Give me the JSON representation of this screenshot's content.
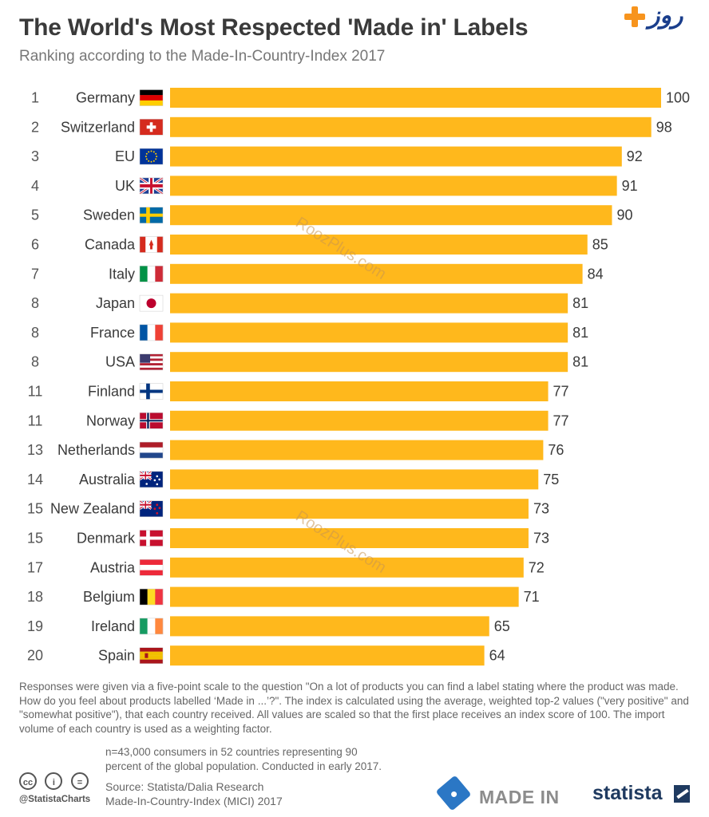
{
  "header": {
    "title": "The World's Most Respected 'Made in' Labels",
    "subtitle": "Ranking according to the Made-In-Country-Index 2017"
  },
  "brand": {
    "text": "روز",
    "icon": "plus-icon",
    "accent": "#f7941d",
    "color": "#1a3e8c"
  },
  "watermark": {
    "text": "RoozPlus.com"
  },
  "colors": {
    "bar": "#ffb81c",
    "text": "#3a3a3a",
    "muted": "#666666"
  },
  "chart_data": {
    "type": "bar",
    "orientation": "horizontal",
    "title": "The World's Most Respected 'Made in' Labels",
    "subtitle": "Ranking according to the Made-In-Country-Index 2017",
    "xlim": [
      0,
      100
    ],
    "grid": false,
    "ranks": [
      "1",
      "2",
      "3",
      "4",
      "5",
      "6",
      "7",
      "8",
      "8",
      "8",
      "11",
      "11",
      "13",
      "14",
      "15",
      "15",
      "17",
      "18",
      "19",
      "20"
    ],
    "categories": [
      "Germany",
      "Switzerland",
      "EU",
      "UK",
      "Sweden",
      "Canada",
      "Italy",
      "Japan",
      "France",
      "USA",
      "Finland",
      "Norway",
      "Netherlands",
      "Australia",
      "New Zealand",
      "Denmark",
      "Austria",
      "Belgium",
      "Ireland",
      "Spain"
    ],
    "values": [
      100,
      98,
      92,
      91,
      90,
      85,
      84,
      81,
      81,
      81,
      77,
      77,
      76,
      75,
      73,
      73,
      72,
      71,
      65,
      64
    ],
    "flags": [
      "germany-flag-icon",
      "switzerland-flag-icon",
      "eu-flag-icon",
      "uk-flag-icon",
      "sweden-flag-icon",
      "canada-flag-icon",
      "italy-flag-icon",
      "japan-flag-icon",
      "france-flag-icon",
      "usa-flag-icon",
      "finland-flag-icon",
      "norway-flag-icon",
      "netherlands-flag-icon",
      "australia-flag-icon",
      "new-zealand-flag-icon",
      "denmark-flag-icon",
      "austria-flag-icon",
      "belgium-flag-icon",
      "ireland-flag-icon",
      "spain-flag-icon"
    ]
  },
  "footer": {
    "note": "Responses were given via a five-point scale to the question \"On a lot of products you can find a label stating where the product was made. How do you feel about products labelled ‘Made in ...’?\". The index is calculated using the average, weighted top-2 values (\"very positive\" and \"somewhat positive\"), that each country received. All values are scaled so that the first place receives an index score of 100. The import volume of each country is used as a weighting factor.",
    "sample_line1": "n=43,000 consumers in 52 countries representing 90",
    "sample_line2": "percent of the global population. Conducted in early 2017.",
    "source_line1": "Source: Statista/Dalia Research",
    "source_line2": "Made-In-Country-Index (MICI) 2017",
    "handle": "@StatistaCharts",
    "madein_logo_text": "MADE IN",
    "statista_logo_text": "statista",
    "cc_icons": [
      {
        "name": "cc-icon",
        "glyph": "cc"
      },
      {
        "name": "attribution-icon",
        "glyph": "i"
      },
      {
        "name": "no-derivatives-icon",
        "glyph": "="
      }
    ]
  }
}
